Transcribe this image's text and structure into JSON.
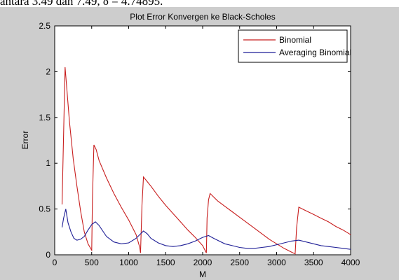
{
  "document": {
    "top_text": "antara 3.49 dan 7.49, δ = 4.74895."
  },
  "chart_data": {
    "type": "line",
    "title": "Plot Error Konvergen ke Black-Scholes",
    "xlabel": "M",
    "ylabel": "Error",
    "xlim": [
      0,
      4000
    ],
    "ylim": [
      0,
      2.5
    ],
    "xticks": [
      0,
      500,
      1000,
      1500,
      2000,
      2500,
      3000,
      3500,
      4000
    ],
    "yticks": [
      0,
      0.5,
      1,
      1.5,
      2,
      2.5
    ],
    "xtick_labels": [
      "0",
      "500",
      "1000",
      "1500",
      "2000",
      "2500",
      "3000",
      "3500",
      "4000"
    ],
    "ytick_labels": [
      "0",
      "0.5",
      "1",
      "1.5",
      "2",
      "2.5"
    ],
    "grid": false,
    "legend_position": "top-right",
    "series": [
      {
        "name": "Binomial",
        "color": "#c81e1e",
        "x": [
          100,
          140,
          160,
          200,
          250,
          300,
          350,
          400,
          450,
          500,
          510,
          530,
          560,
          600,
          700,
          800,
          900,
          1000,
          1100,
          1150,
          1160,
          1180,
          1200,
          1250,
          1300,
          1400,
          1500,
          1600,
          1700,
          1800,
          1900,
          2000,
          2050,
          2060,
          2080,
          2100,
          2200,
          2300,
          2400,
          2500,
          2600,
          2700,
          2800,
          2900,
          3000,
          3100,
          3200,
          3250,
          3270,
          3300,
          3400,
          3500,
          3600,
          3700,
          3800,
          3900,
          4000
        ],
        "y": [
          0.55,
          2.05,
          1.85,
          1.45,
          1.05,
          0.75,
          0.48,
          0.25,
          0.12,
          0.05,
          0.6,
          1.2,
          1.15,
          1.03,
          0.84,
          0.67,
          0.52,
          0.38,
          0.22,
          0.08,
          0.02,
          0.55,
          0.85,
          0.8,
          0.75,
          0.64,
          0.54,
          0.45,
          0.36,
          0.27,
          0.19,
          0.1,
          0.02,
          0.4,
          0.6,
          0.67,
          0.59,
          0.53,
          0.47,
          0.41,
          0.35,
          0.29,
          0.23,
          0.17,
          0.12,
          0.07,
          0.03,
          0.01,
          0.3,
          0.52,
          0.48,
          0.44,
          0.4,
          0.36,
          0.31,
          0.27,
          0.22
        ]
      },
      {
        "name": "Averaging Binomial",
        "color": "#1e1e96",
        "x": [
          100,
          120,
          150,
          180,
          220,
          260,
          300,
          350,
          400,
          450,
          500,
          550,
          600,
          650,
          700,
          800,
          900,
          1000,
          1100,
          1150,
          1200,
          1250,
          1300,
          1400,
          1500,
          1600,
          1700,
          1800,
          1900,
          2000,
          2080,
          2150,
          2200,
          2300,
          2400,
          2500,
          2600,
          2700,
          2800,
          2900,
          3000,
          3100,
          3200,
          3300,
          3400,
          3500,
          3600,
          3700,
          3800,
          3900,
          4000
        ],
        "y": [
          0.3,
          0.4,
          0.5,
          0.35,
          0.25,
          0.18,
          0.16,
          0.17,
          0.2,
          0.27,
          0.33,
          0.36,
          0.32,
          0.26,
          0.2,
          0.14,
          0.12,
          0.13,
          0.18,
          0.22,
          0.26,
          0.23,
          0.18,
          0.13,
          0.1,
          0.09,
          0.1,
          0.12,
          0.15,
          0.19,
          0.21,
          0.18,
          0.16,
          0.12,
          0.1,
          0.08,
          0.07,
          0.07,
          0.08,
          0.09,
          0.11,
          0.13,
          0.15,
          0.16,
          0.14,
          0.12,
          0.1,
          0.09,
          0.08,
          0.07,
          0.06
        ]
      }
    ]
  }
}
